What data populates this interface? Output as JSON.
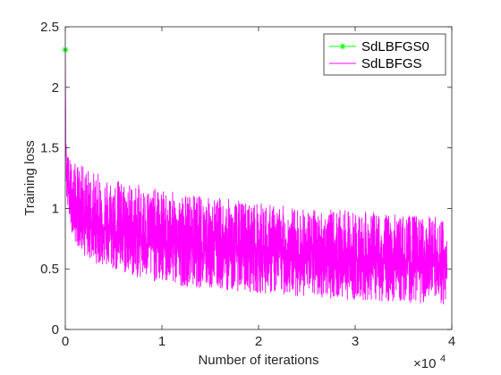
{
  "chart_data": {
    "type": "line",
    "title": "",
    "xlabel": "Number of iterations",
    "ylabel": "Training loss",
    "xlim": [
      0,
      40000
    ],
    "ylim": [
      0,
      2.5
    ],
    "x_ticks": [
      0,
      10000,
      20000,
      30000,
      40000
    ],
    "x_tick_labels": [
      "0",
      "1",
      "2",
      "3",
      "4"
    ],
    "x_exponent_label": "×10",
    "x_exponent_power": "4",
    "y_ticks": [
      0,
      0.5,
      1,
      1.5,
      2,
      2.5
    ],
    "y_tick_labels": [
      "0",
      "0.5",
      "1",
      "1.5",
      "2",
      "2.5"
    ],
    "grid": false,
    "legend_position": "top-right",
    "series": [
      {
        "name": "SdLBFGS0",
        "color": "#00ff00",
        "marker": "asterisk",
        "x": [
          0
        ],
        "y": [
          2.31
        ]
      },
      {
        "name": "SdLBFGS",
        "color": "#ff00ff",
        "marker": "none",
        "x": [
          0,
          50,
          150,
          300,
          600,
          1000,
          2000,
          3000,
          5000,
          7500,
          10000,
          15000,
          20000,
          25000,
          30000,
          35000,
          39500
        ],
        "y_center": [
          2.3,
          1.55,
          1.3,
          1.15,
          1.05,
          0.98,
          0.92,
          0.88,
          0.82,
          0.77,
          0.73,
          0.68,
          0.64,
          0.6,
          0.57,
          0.54,
          0.52
        ],
        "y_high": [
          2.3,
          1.62,
          1.5,
          1.45,
          1.4,
          1.38,
          1.35,
          1.3,
          1.25,
          1.2,
          1.15,
          1.1,
          1.05,
          1.0,
          0.98,
          0.95,
          0.93
        ],
        "y_low": [
          2.3,
          1.3,
          1.05,
          0.95,
          0.82,
          0.72,
          0.6,
          0.55,
          0.48,
          0.42,
          0.38,
          0.33,
          0.3,
          0.27,
          0.24,
          0.22,
          0.2
        ]
      }
    ]
  }
}
